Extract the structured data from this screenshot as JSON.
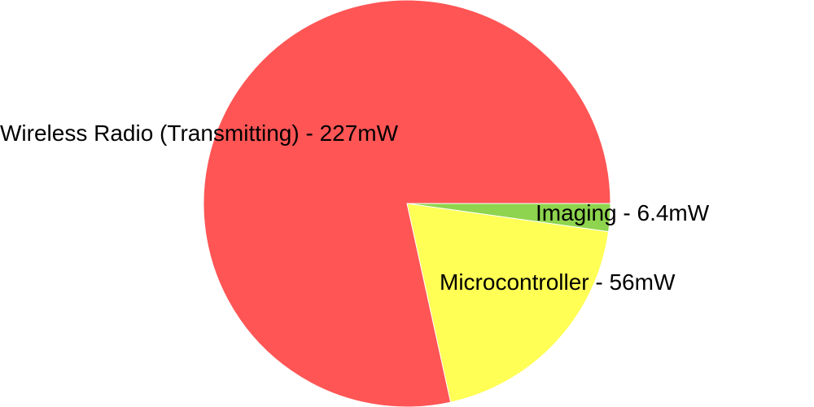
{
  "chart_data": {
    "type": "pie",
    "title": "",
    "categories": [
      "Imaging",
      "Microcontroller",
      "Wireless Radio (Transmitting)"
    ],
    "values": [
      6.4,
      56,
      227
    ],
    "unit": "mW",
    "labels": [
      "Imaging - 6.4mW",
      "Microcontroller - 56mW",
      "Wireless Radio (Transmitting) - 227mW"
    ],
    "colors": [
      "#8ed44e",
      "#ffff55",
      "#ff5555"
    ],
    "start": "3 o'clock",
    "direction": "clockwise",
    "legend": "none"
  }
}
